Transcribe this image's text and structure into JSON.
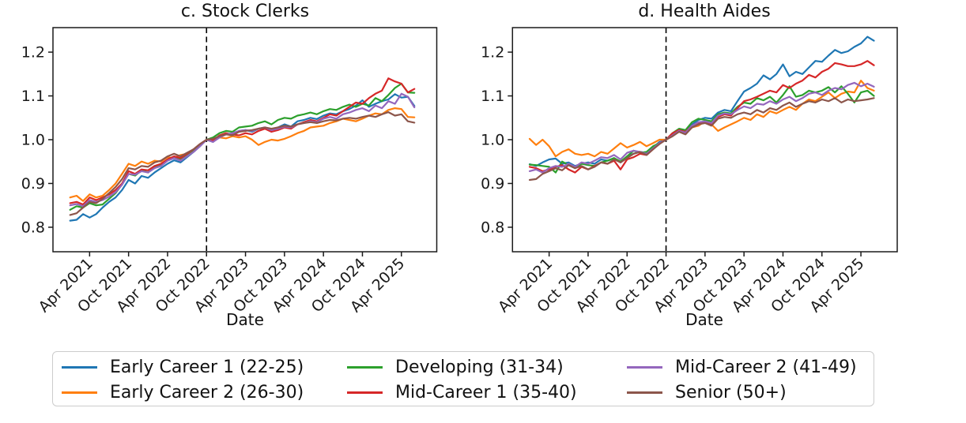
{
  "figure": {
    "background": "#ffffff"
  },
  "legend": {
    "items": [
      {
        "label": "Early Career 1 (22-25)",
        "color": "#1f77b4"
      },
      {
        "label": "Early Career 2 (26-30)",
        "color": "#ff7f0e"
      },
      {
        "label": "Developing (31-34)",
        "color": "#2ca02c"
      },
      {
        "label": "Mid-Career 1 (35-40)",
        "color": "#d62728"
      },
      {
        "label": "Mid-Career 2 (41-49)",
        "color": "#9467bd"
      },
      {
        "label": "Senior (50+)",
        "color": "#8c564b"
      }
    ]
  },
  "chart_data": [
    {
      "type": "line",
      "title": "c. Stock Clerks",
      "xlabel": "Date",
      "ylabel": "",
      "ylim": [
        0.744,
        1.256
      ],
      "grid": false,
      "y_ticks": [
        "0.8",
        "0.9",
        "1.0",
        "1.1",
        "1.2"
      ],
      "x_tick_labels": [
        "Apr 2021",
        "Oct 2021",
        "Apr 2022",
        "Oct 2022",
        "Apr 2023",
        "Oct 2023",
        "Apr 2024",
        "Oct 2024",
        "Apr 2025"
      ],
      "x_tick_indices": [
        3,
        9,
        15,
        21,
        27,
        33,
        39,
        45,
        51
      ],
      "x_unit": "month",
      "x_range": [
        "Jan 2021",
        "Jun 2025"
      ],
      "vline_index": 21,
      "vline_date": "Oct 2022",
      "series": [
        {
          "name": "early-career-1",
          "label": "Early Career 1 (22-25)",
          "color": "#1f77b4",
          "values": [
            0.815,
            0.817,
            0.83,
            0.822,
            0.83,
            0.845,
            0.858,
            0.868,
            0.885,
            0.908,
            0.9,
            0.917,
            0.913,
            0.925,
            0.935,
            0.945,
            0.953,
            0.948,
            0.96,
            0.972,
            0.985,
            1.0,
            0.995,
            1.008,
            1.013,
            1.01,
            1.02,
            1.022,
            1.018,
            1.025,
            1.028,
            1.022,
            1.028,
            1.035,
            1.03,
            1.042,
            1.045,
            1.05,
            1.047,
            1.055,
            1.06,
            1.058,
            1.065,
            1.07,
            1.078,
            1.09,
            1.075,
            1.082,
            1.088,
            1.092,
            1.104,
            1.096,
            1.098,
            1.077
          ]
        },
        {
          "name": "early-career-2",
          "label": "Early Career 2 (26-30)",
          "color": "#ff7f0e",
          "values": [
            0.868,
            0.872,
            0.86,
            0.875,
            0.868,
            0.872,
            0.885,
            0.9,
            0.922,
            0.945,
            0.94,
            0.95,
            0.945,
            0.952,
            0.95,
            0.96,
            0.958,
            0.965,
            0.968,
            0.975,
            0.988,
            1.0,
            1.002,
            1.005,
            1.003,
            1.008,
            1.005,
            1.008,
            1.0,
            0.988,
            0.995,
            1.0,
            0.998,
            1.002,
            1.008,
            1.015,
            1.02,
            1.028,
            1.03,
            1.032,
            1.038,
            1.042,
            1.048,
            1.045,
            1.042,
            1.048,
            1.055,
            1.06,
            1.058,
            1.068,
            1.072,
            1.07,
            1.052,
            1.051
          ]
        },
        {
          "name": "developing",
          "label": "Developing (31-34)",
          "color": "#2ca02c",
          "values": [
            0.84,
            0.848,
            0.845,
            0.855,
            0.85,
            0.852,
            0.865,
            0.878,
            0.898,
            0.922,
            0.918,
            0.93,
            0.925,
            0.938,
            0.942,
            0.955,
            0.96,
            0.955,
            0.965,
            0.975,
            0.988,
            1.0,
            1.005,
            1.015,
            1.02,
            1.018,
            1.028,
            1.03,
            1.032,
            1.038,
            1.042,
            1.035,
            1.045,
            1.05,
            1.048,
            1.055,
            1.058,
            1.062,
            1.058,
            1.065,
            1.07,
            1.068,
            1.075,
            1.08,
            1.075,
            1.082,
            1.078,
            1.095,
            1.088,
            1.102,
            1.118,
            1.128,
            1.108,
            1.107
          ]
        },
        {
          "name": "mid-career-1",
          "label": "Mid-Career 1 (35-40)",
          "color": "#d62728",
          "values": [
            0.855,
            0.858,
            0.852,
            0.868,
            0.862,
            0.868,
            0.875,
            0.885,
            0.9,
            0.928,
            0.922,
            0.932,
            0.93,
            0.94,
            0.945,
            0.955,
            0.962,
            0.958,
            0.968,
            0.978,
            0.99,
            1.0,
            0.998,
            1.01,
            1.015,
            1.012,
            1.01,
            1.015,
            1.012,
            1.02,
            1.025,
            1.018,
            1.022,
            1.028,
            1.025,
            1.035,
            1.04,
            1.045,
            1.042,
            1.05,
            1.058,
            1.055,
            1.065,
            1.075,
            1.085,
            1.082,
            1.095,
            1.105,
            1.112,
            1.14,
            1.133,
            1.128,
            1.108,
            1.116
          ]
        },
        {
          "name": "mid-career-2",
          "label": "Mid-Career 2 (41-49)",
          "color": "#9467bd",
          "values": [
            0.85,
            0.853,
            0.848,
            0.862,
            0.858,
            0.862,
            0.87,
            0.88,
            0.897,
            0.922,
            0.92,
            0.928,
            0.925,
            0.935,
            0.94,
            0.952,
            0.958,
            0.952,
            0.962,
            0.972,
            0.985,
            1.0,
            0.995,
            1.005,
            1.012,
            1.015,
            1.02,
            1.022,
            1.02,
            1.025,
            1.028,
            1.022,
            1.025,
            1.03,
            1.028,
            1.035,
            1.038,
            1.042,
            1.04,
            1.048,
            1.052,
            1.048,
            1.058,
            1.062,
            1.068,
            1.072,
            1.065,
            1.078,
            1.072,
            1.088,
            1.082,
            1.105,
            1.098,
            1.074
          ]
        },
        {
          "name": "senior",
          "label": "Senior (50+)",
          "color": "#8c564b",
          "values": [
            0.828,
            0.832,
            0.845,
            0.858,
            0.855,
            0.865,
            0.878,
            0.892,
            0.91,
            0.935,
            0.932,
            0.94,
            0.938,
            0.948,
            0.952,
            0.962,
            0.968,
            0.962,
            0.97,
            0.978,
            0.99,
            1.0,
            1.002,
            1.008,
            1.012,
            1.01,
            1.018,
            1.02,
            1.022,
            1.025,
            1.028,
            1.025,
            1.028,
            1.032,
            1.03,
            1.035,
            1.038,
            1.04,
            1.038,
            1.042,
            1.045,
            1.044,
            1.048,
            1.05,
            1.048,
            1.052,
            1.055,
            1.052,
            1.058,
            1.063,
            1.055,
            1.058,
            1.042,
            1.039
          ]
        }
      ]
    },
    {
      "type": "line",
      "title": "d. Health Aides",
      "xlabel": "Date",
      "ylabel": "",
      "ylim": [
        0.744,
        1.256
      ],
      "grid": false,
      "y_ticks": [
        "0.8",
        "0.9",
        "1.0",
        "1.1",
        "1.2"
      ],
      "x_tick_labels": [
        "Apr 2021",
        "Oct 2021",
        "Apr 2022",
        "Oct 2022",
        "Apr 2023",
        "Oct 2023",
        "Apr 2024",
        "Oct 2024",
        "Apr 2025"
      ],
      "x_tick_indices": [
        3,
        9,
        15,
        21,
        27,
        33,
        39,
        45,
        51
      ],
      "x_unit": "month",
      "x_range": [
        "Jan 2021",
        "Jun 2025"
      ],
      "vline_index": 21,
      "vline_date": "Oct 2022",
      "series": [
        {
          "name": "early-career-1",
          "label": "Early Career 1 (22-25)",
          "color": "#1f77b4",
          "values": [
            0.944,
            0.94,
            0.948,
            0.955,
            0.957,
            0.945,
            0.948,
            0.94,
            0.945,
            0.948,
            0.945,
            0.955,
            0.952,
            0.958,
            0.948,
            0.962,
            0.968,
            0.972,
            0.97,
            0.982,
            0.995,
            1.0,
            1.012,
            1.022,
            1.018,
            1.035,
            1.045,
            1.05,
            1.048,
            1.062,
            1.068,
            1.065,
            1.088,
            1.11,
            1.118,
            1.128,
            1.147,
            1.138,
            1.15,
            1.172,
            1.145,
            1.155,
            1.15,
            1.165,
            1.18,
            1.178,
            1.192,
            1.205,
            1.198,
            1.202,
            1.212,
            1.22,
            1.235,
            1.226
          ]
        },
        {
          "name": "early-career-2",
          "label": "Early Career 2 (26-30)",
          "color": "#ff7f0e",
          "values": [
            1.002,
            0.988,
            1.0,
            0.985,
            0.962,
            0.972,
            0.978,
            0.968,
            0.965,
            0.968,
            0.962,
            0.972,
            0.968,
            0.98,
            0.992,
            0.982,
            0.988,
            0.995,
            0.985,
            0.992,
            1.0,
            1.0,
            1.01,
            1.018,
            1.015,
            1.028,
            1.032,
            1.042,
            1.035,
            1.02,
            1.028,
            1.035,
            1.042,
            1.05,
            1.045,
            1.058,
            1.052,
            1.065,
            1.06,
            1.068,
            1.075,
            1.068,
            1.082,
            1.092,
            1.088,
            1.098,
            1.108,
            1.095,
            1.105,
            1.11,
            1.108,
            1.135,
            1.118,
            1.112
          ]
        },
        {
          "name": "developing",
          "label": "Developing (31-34)",
          "color": "#2ca02c",
          "values": [
            0.943,
            0.942,
            0.94,
            0.938,
            0.925,
            0.95,
            0.942,
            0.935,
            0.945,
            0.942,
            0.94,
            0.948,
            0.952,
            0.958,
            0.95,
            0.962,
            0.975,
            0.97,
            0.972,
            0.985,
            0.992,
            1.0,
            1.015,
            1.025,
            1.022,
            1.04,
            1.048,
            1.045,
            1.042,
            1.058,
            1.062,
            1.06,
            1.075,
            1.085,
            1.082,
            1.095,
            1.09,
            1.098,
            1.085,
            1.102,
            1.122,
            1.098,
            1.102,
            1.112,
            1.108,
            1.112,
            1.12,
            1.108,
            1.122,
            1.105,
            1.085,
            1.108,
            1.112,
            1.1
          ]
        },
        {
          "name": "mid-career-1",
          "label": "Mid-Career 1 (35-40)",
          "color": "#d62728",
          "values": [
            0.938,
            0.935,
            0.928,
            0.932,
            0.938,
            0.942,
            0.932,
            0.925,
            0.938,
            0.932,
            0.94,
            0.948,
            0.945,
            0.952,
            0.932,
            0.955,
            0.96,
            0.968,
            0.965,
            0.978,
            0.992,
            1.0,
            1.015,
            1.022,
            1.018,
            1.032,
            1.038,
            1.04,
            1.035,
            1.052,
            1.058,
            1.055,
            1.072,
            1.088,
            1.092,
            1.098,
            1.105,
            1.112,
            1.108,
            1.125,
            1.118,
            1.128,
            1.135,
            1.148,
            1.142,
            1.155,
            1.162,
            1.175,
            1.172,
            1.168,
            1.168,
            1.172,
            1.18,
            1.17
          ]
        },
        {
          "name": "mid-career-2",
          "label": "Mid-Career 2 (41-49)",
          "color": "#9467bd",
          "values": [
            0.928,
            0.932,
            0.925,
            0.935,
            0.94,
            0.938,
            0.945,
            0.938,
            0.948,
            0.945,
            0.952,
            0.96,
            0.958,
            0.965,
            0.955,
            0.97,
            0.975,
            0.972,
            0.968,
            0.98,
            0.992,
            1.0,
            1.01,
            1.02,
            1.016,
            1.032,
            1.04,
            1.042,
            1.038,
            1.055,
            1.06,
            1.058,
            1.068,
            1.076,
            1.072,
            1.082,
            1.08,
            1.088,
            1.082,
            1.092,
            1.098,
            1.088,
            1.095,
            1.105,
            1.108,
            1.102,
            1.112,
            1.118,
            1.115,
            1.125,
            1.13,
            1.122,
            1.128,
            1.121
          ]
        },
        {
          "name": "senior",
          "label": "Senior (50+)",
          "color": "#8c564b",
          "values": [
            0.908,
            0.91,
            0.922,
            0.928,
            0.935,
            0.93,
            0.942,
            0.935,
            0.94,
            0.932,
            0.938,
            0.948,
            0.945,
            0.955,
            0.948,
            0.958,
            0.968,
            0.972,
            0.965,
            0.978,
            0.99,
            1.0,
            1.008,
            1.018,
            1.012,
            1.028,
            1.035,
            1.038,
            1.032,
            1.048,
            1.052,
            1.05,
            1.058,
            1.062,
            1.058,
            1.068,
            1.062,
            1.072,
            1.068,
            1.078,
            1.085,
            1.075,
            1.082,
            1.088,
            1.085,
            1.092,
            1.088,
            1.095,
            1.085,
            1.092,
            1.088,
            1.09,
            1.092,
            1.095
          ]
        }
      ]
    }
  ]
}
